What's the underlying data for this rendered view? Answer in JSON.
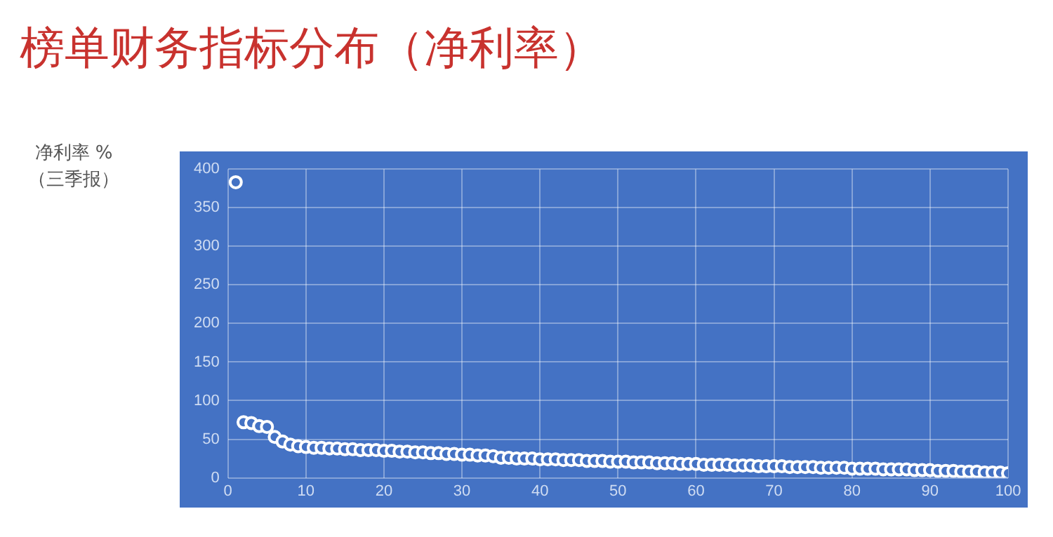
{
  "chart_data": {
    "type": "scatter",
    "title": "榜单财务指标分布（净利率）",
    "ylabel": "净利率 %\n（三季报）",
    "x": [
      1,
      2,
      3,
      4,
      5,
      6,
      7,
      8,
      9,
      10,
      11,
      12,
      13,
      14,
      15,
      16,
      17,
      18,
      19,
      20,
      21,
      22,
      23,
      24,
      25,
      26,
      27,
      28,
      29,
      30,
      31,
      32,
      33,
      34,
      35,
      36,
      37,
      38,
      39,
      40,
      41,
      42,
      43,
      44,
      45,
      46,
      47,
      48,
      49,
      50,
      51,
      52,
      53,
      54,
      55,
      56,
      57,
      58,
      59,
      60,
      61,
      62,
      63,
      64,
      65,
      66,
      67,
      68,
      69,
      70,
      71,
      72,
      73,
      74,
      75,
      76,
      77,
      78,
      79,
      80,
      81,
      82,
      83,
      84,
      85,
      86,
      87,
      88,
      89,
      90,
      91,
      92,
      93,
      94,
      95,
      96,
      97,
      98,
      99,
      100
    ],
    "series": [
      {
        "color": "#ffffff",
        "values": [
          383,
          72,
          71,
          67,
          66,
          53,
          47,
          43,
          41,
          40,
          39,
          39,
          38,
          38,
          37,
          37,
          36,
          36,
          36,
          35,
          35,
          34,
          34,
          33,
          33,
          32,
          32,
          31,
          31,
          30,
          30,
          29,
          29,
          28,
          26,
          26,
          25,
          25,
          25,
          24,
          24,
          24,
          23,
          23,
          23,
          22,
          22,
          22,
          21,
          21,
          21,
          20,
          20,
          20,
          19,
          19,
          19,
          18,
          18,
          18,
          17,
          17,
          17,
          17,
          16,
          16,
          16,
          15,
          15,
          15,
          15,
          14,
          14,
          14,
          14,
          13,
          13,
          13,
          13,
          12,
          12,
          12,
          12,
          11,
          11,
          11,
          11,
          10,
          10,
          10,
          9,
          9,
          9,
          8,
          8,
          8,
          7,
          7,
          7,
          6
        ]
      }
    ],
    "xlim": [
      0,
      100
    ],
    "xticks": [
      0,
      10,
      20,
      30,
      40,
      50,
      60,
      70,
      80,
      90,
      100
    ],
    "ylim": [
      0,
      400
    ],
    "yticks": [
      0,
      50,
      100,
      150,
      200,
      250,
      300,
      350,
      400
    ],
    "grid": true,
    "marker": "circle"
  }
}
